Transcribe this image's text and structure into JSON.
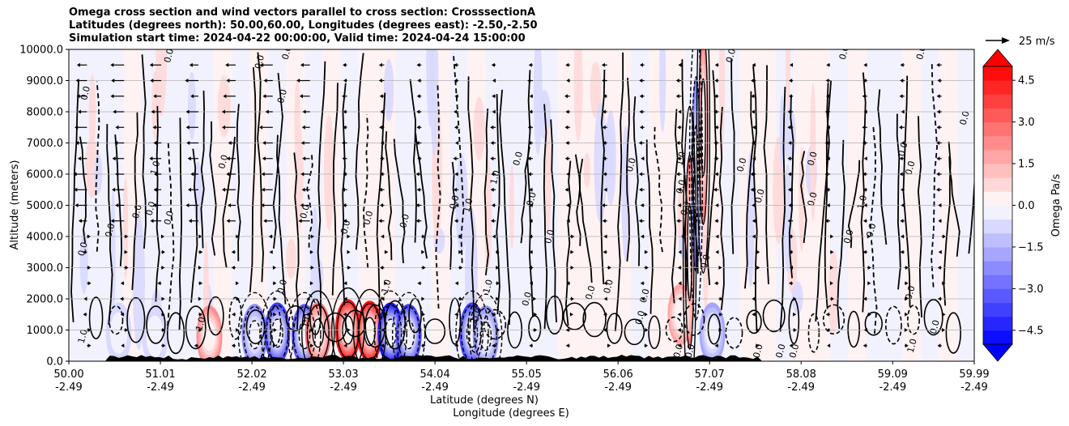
{
  "title_lines": [
    "Omega cross section and wind vectors parallel to cross section: CrosssectionA",
    "Latitudes (degrees north): 50.00,60.00, Longitudes (degrees east): -2.50,-2.50",
    "Simulation start time: 2024-04-22 00:00:00, Valid time: 2024-04-24 15:00:00"
  ],
  "chart_data": {
    "type": "heatmap",
    "subtype": "cross-section filled contour with contour lines and wind vectors",
    "ylabel": "Altitude (meters)",
    "xlabel_lines": [
      "Latitude (degrees N)",
      "Longitude (degrees E)"
    ],
    "ylim": [
      0,
      10000
    ],
    "xlim": [
      50.0,
      59.99
    ],
    "y_ticks": [
      0,
      1000,
      2000,
      3000,
      4000,
      5000,
      6000,
      7000,
      8000,
      9000,
      10000
    ],
    "y_tick_labels": [
      "0.0",
      "1000.0",
      "2000.0",
      "3000.0",
      "4000.0",
      "5000.0",
      "6000.0",
      "7000.0",
      "8000.0",
      "9000.0",
      "10000.0"
    ],
    "x_ticks": [
      50.0,
      51.01,
      52.02,
      53.03,
      54.04,
      55.05,
      56.06,
      57.07,
      58.08,
      59.09,
      59.99
    ],
    "x_tick_lat": [
      "50.00",
      "51.01",
      "52.02",
      "53.03",
      "54.04",
      "55.05",
      "56.06",
      "57.07",
      "58.08",
      "59.09",
      "59.99"
    ],
    "x_tick_lon": [
      "-2.49",
      "-2.49",
      "-2.49",
      "-2.49",
      "-2.49",
      "-2.49",
      "-2.49",
      "-2.49",
      "-2.49",
      "-2.49",
      "-2.49"
    ],
    "grid": true,
    "colorbar": {
      "label": "Omega Pa/s",
      "min": -5.0,
      "max": 5.0,
      "step": 0.5,
      "extend": "both",
      "ticks": [
        -4.5,
        -3.0,
        -1.5,
        0.0,
        1.5,
        3.0,
        4.5
      ],
      "tick_labels": [
        "−4.5",
        "−3.0",
        "−1.5",
        "0.0",
        "1.5",
        "3.0",
        "4.5"
      ],
      "colormap": "bwr"
    },
    "quiver_key": {
      "label": "25 m/s",
      "speed": 25
    },
    "omega_features": [
      {
        "lat": 50.55,
        "z": 900,
        "value": -1.0
      },
      {
        "lat": 50.95,
        "z": 800,
        "value": -0.8
      },
      {
        "lat": 51.55,
        "z": 800,
        "value": 2.2
      },
      {
        "lat": 52.05,
        "z": 850,
        "value": -2.5
      },
      {
        "lat": 52.3,
        "z": 900,
        "value": -3.8
      },
      {
        "lat": 52.6,
        "z": 850,
        "value": -3.2
      },
      {
        "lat": 52.75,
        "z": 900,
        "value": 3.0
      },
      {
        "lat": 53.08,
        "z": 1000,
        "value": 4.6
      },
      {
        "lat": 53.32,
        "z": 950,
        "value": 5.0
      },
      {
        "lat": 53.55,
        "z": 900,
        "value": -4.6
      },
      {
        "lat": 53.75,
        "z": 850,
        "value": -3.8
      },
      {
        "lat": 54.45,
        "z": 900,
        "value": -4.0
      },
      {
        "lat": 54.6,
        "z": 800,
        "value": -2.5
      },
      {
        "lat": 56.85,
        "z": 3500,
        "value": 2.8
      },
      {
        "lat": 56.92,
        "z": 6000,
        "value": -2.6
      },
      {
        "lat": 57.0,
        "z": 7500,
        "value": 3.0
      },
      {
        "lat": 57.1,
        "z": 900,
        "value": -2.0
      },
      {
        "lat": 56.75,
        "z": 1500,
        "value": 1.8
      }
    ],
    "contour_labels": [
      {
        "text": "0.0",
        "lat": 50.15,
        "z": 3600
      },
      {
        "text": "1.0",
        "lat": 50.15,
        "z": 800
      },
      {
        "text": "0.0",
        "lat": 50.45,
        "z": 4200
      },
      {
        "text": "0.0",
        "lat": 50.18,
        "z": 8600
      },
      {
        "text": "1.0",
        "lat": 50.95,
        "z": 6200
      },
      {
        "text": "0.0",
        "lat": 50.75,
        "z": 4800
      },
      {
        "text": "0.0",
        "lat": 50.9,
        "z": 4900
      },
      {
        "text": "0.0",
        "lat": 51.1,
        "z": 4600
      },
      {
        "text": "0.0",
        "lat": 51.1,
        "z": 9800
      },
      {
        "text": "1.0",
        "lat": 51.45,
        "z": 1200
      },
      {
        "text": "0.0",
        "lat": 51.7,
        "z": 6400
      },
      {
        "text": "0.0",
        "lat": 52.1,
        "z": 9600
      },
      {
        "text": "0.0",
        "lat": 52.35,
        "z": 8500
      },
      {
        "text": "0.0",
        "lat": 52.35,
        "z": 2400
      },
      {
        "text": "0.0",
        "lat": 52.4,
        "z": 9900
      },
      {
        "text": "0.0",
        "lat": 52.6,
        "z": 4800
      },
      {
        "text": "1.0",
        "lat": 52.62,
        "z": 1300
      },
      {
        "text": "0.0",
        "lat": 53.05,
        "z": 4300
      },
      {
        "text": "0.0",
        "lat": 53.3,
        "z": 4600
      },
      {
        "text": "1.0",
        "lat": 53.5,
        "z": 2400
      },
      {
        "text": "0.0",
        "lat": 53.7,
        "z": 4500
      },
      {
        "text": "0.0",
        "lat": 54.25,
        "z": 5100
      },
      {
        "text": "1.0",
        "lat": 54.4,
        "z": 5000
      },
      {
        "text": "1.0",
        "lat": 54.62,
        "z": 2400
      },
      {
        "text": "1.0",
        "lat": 54.7,
        "z": 5900
      },
      {
        "text": "0.0",
        "lat": 54.5,
        "z": 1500
      },
      {
        "text": "0.0",
        "lat": 54.95,
        "z": 6500
      },
      {
        "text": "0.0",
        "lat": 55.05,
        "z": 2000
      },
      {
        "text": "0.0",
        "lat": 55.1,
        "z": 5200
      },
      {
        "text": "0.0",
        "lat": 55.3,
        "z": 4000
      },
      {
        "text": "0.0",
        "lat": 55.75,
        "z": 2200
      },
      {
        "text": "0.0",
        "lat": 55.95,
        "z": 2400
      },
      {
        "text": "0.0",
        "lat": 56.2,
        "z": 6300
      },
      {
        "text": "0.0",
        "lat": 56.35,
        "z": 2100
      },
      {
        "text": "0.0",
        "lat": 56.3,
        "z": 1400
      },
      {
        "text": "1.0",
        "lat": 56.75,
        "z": 6500
      },
      {
        "text": "0.0",
        "lat": 56.75,
        "z": 5600
      },
      {
        "text": "0.0",
        "lat": 56.8,
        "z": 4900
      },
      {
        "text": "0.0",
        "lat": 57.02,
        "z": 3200
      },
      {
        "text": "0.0",
        "lat": 57.3,
        "z": 9800
      },
      {
        "text": "0.0",
        "lat": 57.42,
        "z": 6300
      },
      {
        "text": "0.0",
        "lat": 57.62,
        "z": 5300
      },
      {
        "text": "0.0",
        "lat": 58.2,
        "z": 5200
      },
      {
        "text": "0.0",
        "lat": 58.2,
        "z": 6500
      },
      {
        "text": "0.0",
        "lat": 58.6,
        "z": 4000
      },
      {
        "text": "1.0",
        "lat": 58.75,
        "z": 5100
      },
      {
        "text": "0.0",
        "lat": 58.85,
        "z": 4200
      },
      {
        "text": "0.0",
        "lat": 58.55,
        "z": 9900
      },
      {
        "text": "0.0",
        "lat": 59.2,
        "z": 6800
      },
      {
        "text": "0.0",
        "lat": 59.28,
        "z": 6200
      },
      {
        "text": "0.0",
        "lat": 59.28,
        "z": 2200
      },
      {
        "text": "0.0",
        "lat": 59.88,
        "z": 7800
      },
      {
        "text": "0.0",
        "lat": 59.4,
        "z": 9900
      },
      {
        "text": "0.0",
        "lat": 56.72,
        "z": 330
      },
      {
        "text": "0.0",
        "lat": 56.85,
        "z": 330
      },
      {
        "text": "0.0",
        "lat": 57.6,
        "z": 330
      },
      {
        "text": "0.0",
        "lat": 57.85,
        "z": 330
      },
      {
        "text": "0.0",
        "lat": 58.0,
        "z": 330
      },
      {
        "text": "0.0",
        "lat": 59.55,
        "z": 1100
      },
      {
        "text": "1.0",
        "lat": 59.3,
        "z": 500
      }
    ]
  }
}
